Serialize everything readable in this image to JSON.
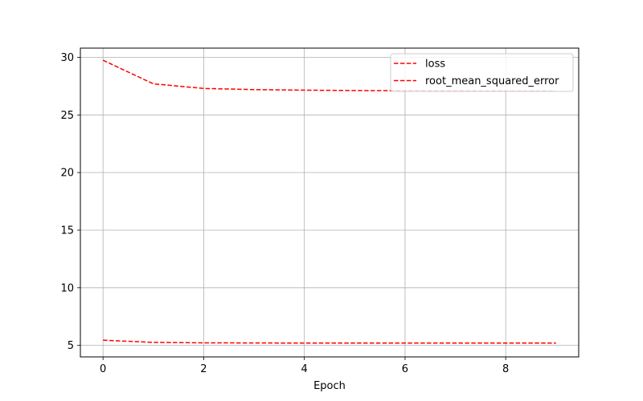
{
  "chart_data": {
    "type": "line",
    "title": "",
    "xlabel": "Epoch",
    "ylabel": "",
    "xlim": [
      -0.45,
      9.45
    ],
    "ylim": [
      4.0,
      30.8
    ],
    "xticks": [
      0,
      2,
      4,
      6,
      8
    ],
    "yticks": [
      5,
      10,
      15,
      20,
      25,
      30
    ],
    "grid": true,
    "legend_position": "top-right",
    "x": [
      0,
      1,
      2,
      3,
      4,
      5,
      6,
      7,
      8,
      9
    ],
    "series": [
      {
        "name": "loss",
        "color": "#ff0000",
        "line_style": "dashed",
        "values": [
          29.75,
          27.7,
          27.3,
          27.2,
          27.15,
          27.12,
          27.1,
          27.09,
          27.08,
          27.07
        ]
      },
      {
        "name": "root_mean_squared_error",
        "color": "#ff0000",
        "line_style": "dashed",
        "values": [
          5.45,
          5.26,
          5.22,
          5.21,
          5.2,
          5.2,
          5.2,
          5.2,
          5.2,
          5.2
        ]
      }
    ]
  }
}
